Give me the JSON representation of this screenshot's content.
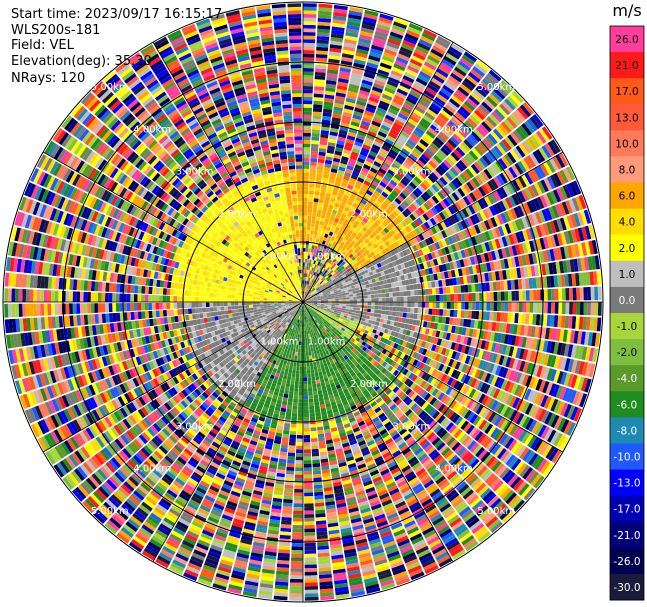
{
  "header": {
    "start_time": "Start time: 2023/09/17 16:15:17",
    "instrument": "WLS200s-181",
    "field": "Field: VEL",
    "elevation": "Elevation(deg): 35.30",
    "nrays": "NRays: 120"
  },
  "chart_data": {
    "type": "heatmap",
    "projection": "polar (PPI scan)",
    "field": "VEL",
    "units": "m/s",
    "nrays": 120,
    "range_rings": [
      {
        "range_km": 1.0,
        "label": "1.00km"
      },
      {
        "range_km": 2.0,
        "label": "2.00km"
      },
      {
        "range_km": 3.0,
        "label": "3.00km"
      },
      {
        "range_km": 4.0,
        "label": "4.00km"
      },
      {
        "range_km": 5.0,
        "label": "5.00km"
      }
    ],
    "max_range_km": 5.0,
    "spokes_deg": [
      0,
      30,
      60,
      90,
      120,
      150,
      180,
      210,
      240,
      270,
      300,
      330
    ],
    "colorbar": {
      "title": "m/s",
      "ticks": [
        "26.0",
        "21.0",
        "17.0",
        "13.0",
        "10.0",
        "8.0",
        "6.0",
        "4.0",
        "2.0",
        "1.0",
        "0.0",
        "-1.0",
        "-2.0",
        "-4.0",
        "-6.0",
        "-8.0",
        "-10.0",
        "-13.0",
        "-17.0",
        "-21.0",
        "-26.0",
        "-30.0"
      ],
      "colors": [
        "#ff3d9b",
        "#ff1a1a",
        "#ff5a1a",
        "#ff5a3a",
        "#ff7a5a",
        "#ff9a7a",
        "#ffa500",
        "#ffdd00",
        "#ffff00",
        "#bebebe",
        "#7a7a7a",
        "#a8d63a",
        "#7fbf3f",
        "#5a9a2a",
        "#1e8c1e",
        "#1e8ab4",
        "#1e5aff",
        "#0000ff",
        "#0000b4",
        "#00007a",
        "#000050",
        "#1a1a3a"
      ]
    },
    "sectors": [
      {
        "from_range_km": 0.0,
        "to_range_km": 2.2,
        "az_from": 270,
        "az_to": 350,
        "dominant": "yellow",
        "velocity_ms": 2.0
      },
      {
        "from_range_km": 1.0,
        "to_range_km": 2.2,
        "az_from": 300,
        "az_to": 60,
        "dominant": "orange",
        "velocity_ms": 5.0
      },
      {
        "from_range_km": 0.0,
        "to_range_km": 2.0,
        "az_from": 50,
        "az_to": 110,
        "dominant": "grey",
        "velocity_ms": 0.0
      },
      {
        "from_range_km": 0.0,
        "to_range_km": 1.0,
        "az_from": 80,
        "az_to": 130,
        "dominant": "light-green",
        "velocity_ms": -1.0
      },
      {
        "from_range_km": 0.0,
        "to_range_km": 2.0,
        "az_from": 130,
        "az_to": 210,
        "dominant": "green",
        "velocity_ms": -6.0
      },
      {
        "from_range_km": 0.0,
        "to_range_km": 2.0,
        "az_from": 210,
        "az_to": 270,
        "dominant": "grey",
        "velocity_ms": 0.0
      },
      {
        "from_range_km": 2.0,
        "to_range_km": 5.0,
        "az_from": 0,
        "az_to": 360,
        "dominant": "noise",
        "velocity_ms": null
      }
    ]
  }
}
